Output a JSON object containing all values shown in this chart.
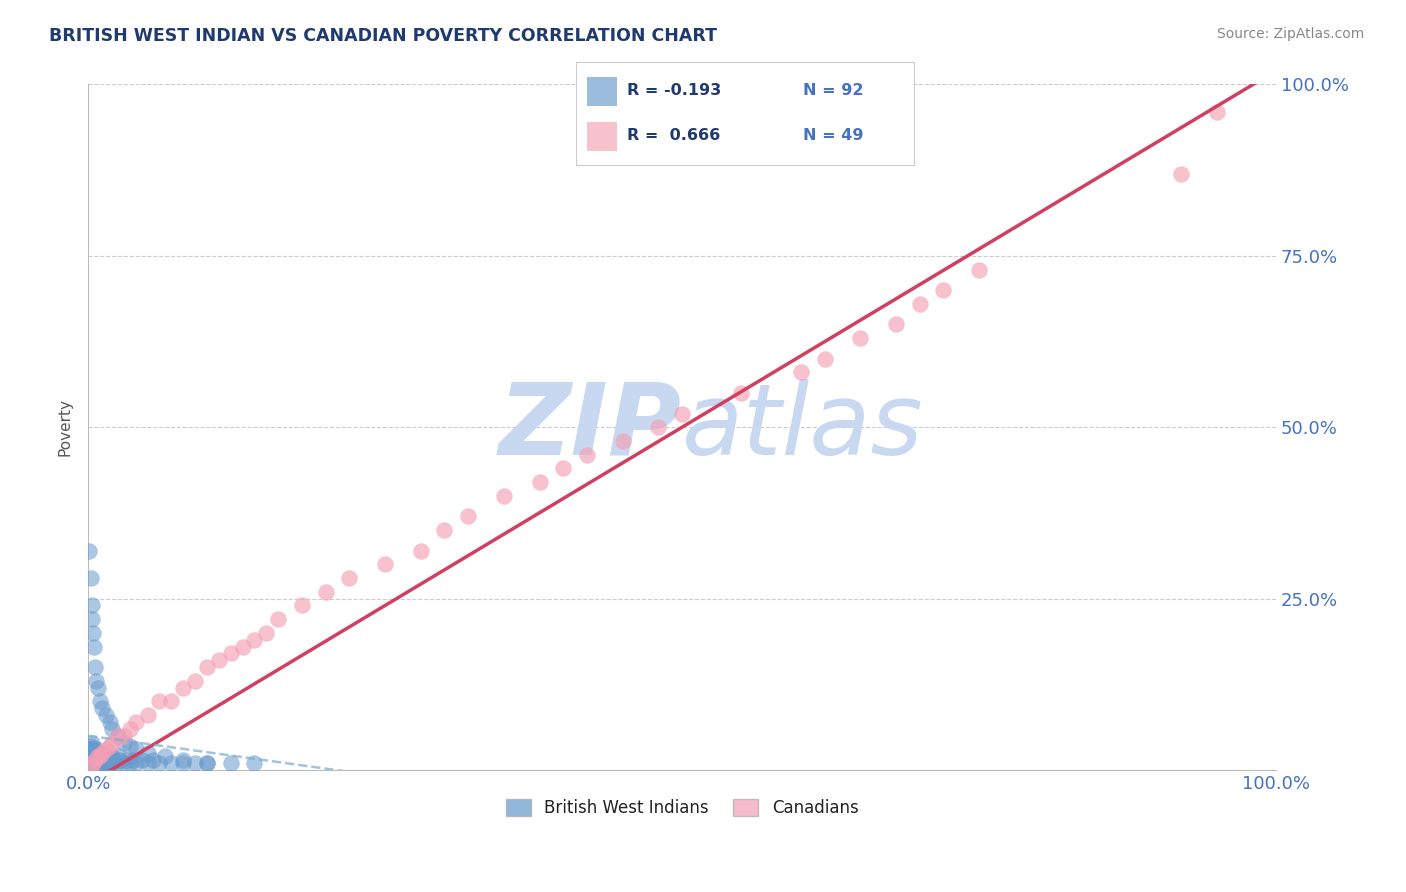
{
  "title": "BRITISH WEST INDIAN VS CANADIAN POVERTY CORRELATION CHART",
  "source_text": "Source: ZipAtlas.com",
  "ylabel": "Poverty",
  "xlim": [
    0,
    1
  ],
  "ylim": [
    0,
    1
  ],
  "blue_color": "#6699CC",
  "pink_color": "#F4A0B5",
  "trend_blue_color": "#7AAAD0",
  "trend_pink_color": "#D04060",
  "title_color": "#1F3A6E",
  "axis_label_color": "#4472C4",
  "watermark_color": "#C8D8F0",
  "grid_color": "#CCCCCC",
  "legend_r1": "R = -0.193",
  "legend_n1": "N = 92",
  "legend_r2": "R =  0.666",
  "legend_n2": "N = 49",
  "blue_x": [
    0.001,
    0.001,
    0.001,
    0.002,
    0.002,
    0.002,
    0.002,
    0.002,
    0.003,
    0.003,
    0.003,
    0.003,
    0.003,
    0.003,
    0.004,
    0.004,
    0.004,
    0.004,
    0.005,
    0.005,
    0.005,
    0.005,
    0.006,
    0.006,
    0.006,
    0.007,
    0.007,
    0.007,
    0.008,
    0.008,
    0.009,
    0.009,
    0.01,
    0.01,
    0.01,
    0.011,
    0.011,
    0.012,
    0.012,
    0.013,
    0.014,
    0.014,
    0.015,
    0.015,
    0.016,
    0.017,
    0.018,
    0.018,
    0.019,
    0.02,
    0.02,
    0.022,
    0.024,
    0.025,
    0.027,
    0.03,
    0.032,
    0.035,
    0.038,
    0.04,
    0.045,
    0.05,
    0.055,
    0.06,
    0.07,
    0.08,
    0.09,
    0.1,
    0.12,
    0.14,
    0.001,
    0.002,
    0.003,
    0.003,
    0.004,
    0.005,
    0.006,
    0.007,
    0.008,
    0.01,
    0.012,
    0.015,
    0.018,
    0.02,
    0.025,
    0.03,
    0.035,
    0.04,
    0.05,
    0.065,
    0.08,
    0.1
  ],
  "blue_y": [
    0.01,
    0.02,
    0.03,
    0.01,
    0.015,
    0.02,
    0.025,
    0.035,
    0.01,
    0.015,
    0.02,
    0.025,
    0.03,
    0.04,
    0.01,
    0.02,
    0.025,
    0.03,
    0.01,
    0.015,
    0.02,
    0.03,
    0.01,
    0.02,
    0.025,
    0.015,
    0.02,
    0.03,
    0.01,
    0.025,
    0.015,
    0.02,
    0.01,
    0.015,
    0.025,
    0.01,
    0.02,
    0.01,
    0.02,
    0.015,
    0.01,
    0.02,
    0.01,
    0.015,
    0.01,
    0.015,
    0.01,
    0.02,
    0.015,
    0.01,
    0.02,
    0.015,
    0.01,
    0.02,
    0.015,
    0.01,
    0.015,
    0.01,
    0.015,
    0.01,
    0.015,
    0.01,
    0.015,
    0.01,
    0.01,
    0.01,
    0.01,
    0.01,
    0.01,
    0.01,
    0.32,
    0.28,
    0.24,
    0.22,
    0.2,
    0.18,
    0.15,
    0.13,
    0.12,
    0.1,
    0.09,
    0.08,
    0.07,
    0.06,
    0.05,
    0.04,
    0.035,
    0.03,
    0.025,
    0.02,
    0.015,
    0.01
  ],
  "pink_x": [
    0.002,
    0.004,
    0.006,
    0.008,
    0.01,
    0.012,
    0.015,
    0.018,
    0.02,
    0.025,
    0.03,
    0.035,
    0.04,
    0.05,
    0.06,
    0.07,
    0.08,
    0.09,
    0.1,
    0.11,
    0.12,
    0.13,
    0.14,
    0.15,
    0.16,
    0.18,
    0.2,
    0.22,
    0.25,
    0.28,
    0.3,
    0.32,
    0.35,
    0.38,
    0.4,
    0.42,
    0.45,
    0.48,
    0.5,
    0.55,
    0.6,
    0.62,
    0.65,
    0.68,
    0.7,
    0.72,
    0.75,
    0.92,
    0.95
  ],
  "pink_y": [
    0.005,
    0.01,
    0.015,
    0.02,
    0.02,
    0.025,
    0.03,
    0.035,
    0.04,
    0.05,
    0.05,
    0.06,
    0.07,
    0.08,
    0.1,
    0.1,
    0.12,
    0.13,
    0.15,
    0.16,
    0.17,
    0.18,
    0.19,
    0.2,
    0.22,
    0.24,
    0.26,
    0.28,
    0.3,
    0.32,
    0.35,
    0.37,
    0.4,
    0.42,
    0.44,
    0.46,
    0.48,
    0.5,
    0.52,
    0.55,
    0.58,
    0.6,
    0.63,
    0.65,
    0.68,
    0.7,
    0.73,
    0.87,
    0.96
  ],
  "pink_trend_x0": 0.0,
  "pink_trend_x1": 1.0,
  "pink_trend_y0": -0.02,
  "pink_trend_y1": 1.02,
  "blue_trend_x0": 0.0,
  "blue_trend_x1": 0.25,
  "blue_trend_y0": 0.05,
  "blue_trend_y1": -0.01
}
